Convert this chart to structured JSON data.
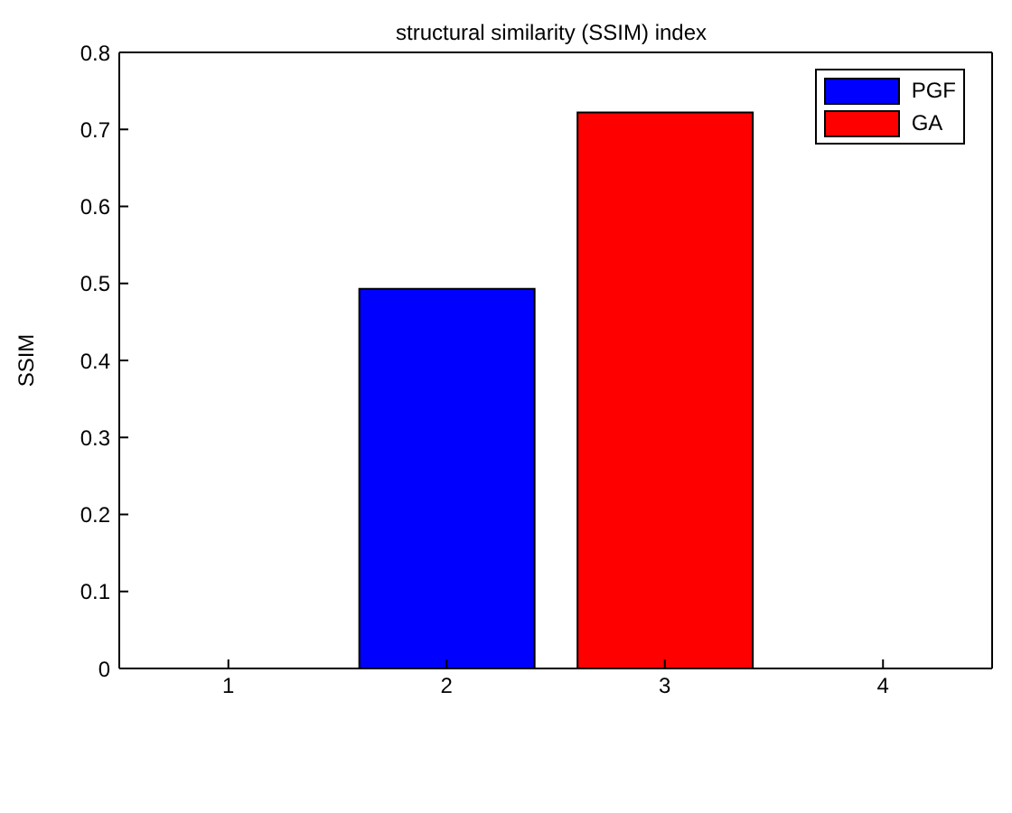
{
  "chart_data": {
    "type": "bar",
    "title": "structural similarity (SSIM) index",
    "ylabel": "SSIM",
    "categories": [
      "1",
      "2",
      "3",
      "4"
    ],
    "series": [
      {
        "name": "PGF",
        "color": "#0000ff",
        "values": [
          0,
          0.493,
          0,
          0
        ]
      },
      {
        "name": "GA",
        "color": "#ff0000",
        "values": [
          0,
          0,
          0.722,
          0
        ]
      }
    ],
    "stacked": true,
    "ylim": [
      0,
      0.8
    ],
    "yticks": [
      0,
      0.1,
      0.2,
      0.3,
      0.4,
      0.5,
      0.6,
      0.7,
      0.8
    ],
    "grid": false,
    "legend": "top right"
  }
}
